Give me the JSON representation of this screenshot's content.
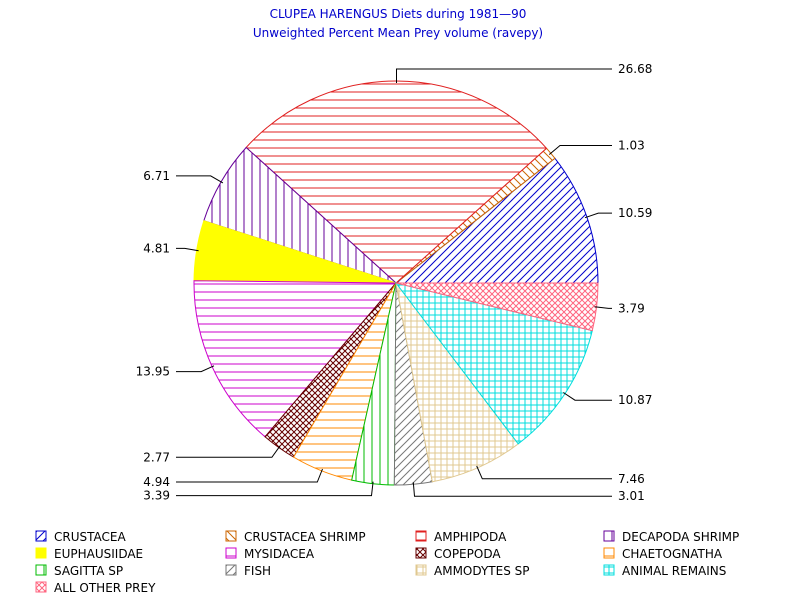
{
  "chart_data": {
    "type": "pie",
    "title": "CLUPEA HARENGUS Diets during 1981—90",
    "subtitle": "Unweighted Percent Mean Prey volume (ravepy)",
    "series": [
      {
        "name": "CRUSTACEA",
        "value": 10.59,
        "label": "10.59",
        "color": "#0000cc",
        "pattern": "diag-right"
      },
      {
        "name": "CRUSTACEA SHRIMP",
        "value": 1.03,
        "label": "1.03",
        "color": "#cc6600",
        "pattern": "diag-left"
      },
      {
        "name": "AMPHIPODA",
        "value": 26.68,
        "label": "26.68",
        "color": "#e02020",
        "pattern": "horizontal"
      },
      {
        "name": "DECAPODA SHRIMP",
        "value": 6.71,
        "label": "6.71",
        "color": "#660099",
        "pattern": "vertical"
      },
      {
        "name": "EUPHAUSIIDAE",
        "value": 4.81,
        "label": "4.81",
        "color": "#ffff00",
        "pattern": "solid"
      },
      {
        "name": "MYSIDACEA",
        "value": 13.95,
        "label": "13.95",
        "color": "#cc00cc",
        "pattern": "horizontal"
      },
      {
        "name": "COPEPODA",
        "value": 2.77,
        "label": "2.77",
        "color": "#660000",
        "pattern": "crosshatch-diag"
      },
      {
        "name": "CHAETOGNATHA",
        "value": 4.94,
        "label": "4.94",
        "color": "#ff8800",
        "pattern": "horizontal"
      },
      {
        "name": "SAGITTA SP",
        "value": 3.39,
        "label": "3.39",
        "color": "#00bb00",
        "pattern": "vertical"
      },
      {
        "name": "FISH",
        "value": 3.01,
        "label": "3.01",
        "color": "#777777",
        "pattern": "diag-right"
      },
      {
        "name": "AMMODYTES SP",
        "value": 7.46,
        "label": "7.46",
        "color": "#e0c890",
        "pattern": "grid"
      },
      {
        "name": "ANIMAL REMAINS",
        "value": 10.87,
        "label": "10.87",
        "color": "#00dddd",
        "pattern": "grid"
      },
      {
        "name": "ALL OTHER PREY",
        "value": 3.79,
        "label": "3.79",
        "color": "#ff6680",
        "pattern": "crosshatch-diag"
      }
    ],
    "legend_placement": "bottom",
    "order": "counter-clockwise from east"
  }
}
